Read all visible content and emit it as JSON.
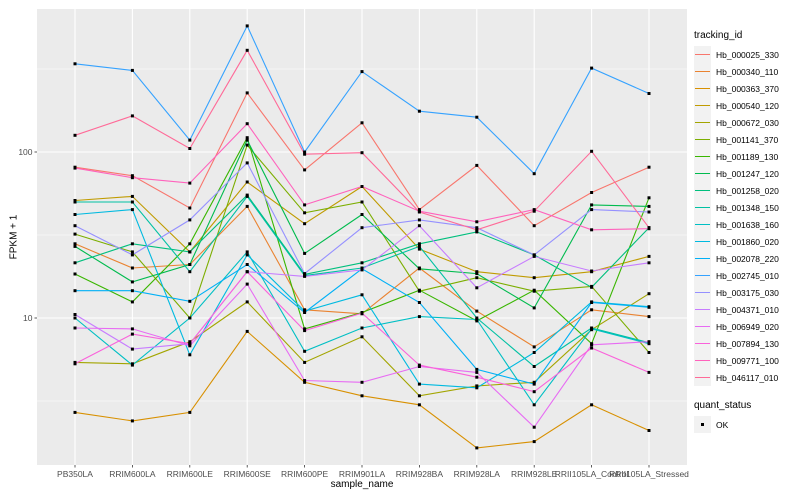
{
  "figure": {
    "background": "#FFFFFF",
    "panel_background": "#EBEBEB",
    "gridline_color": "#FFFFFF",
    "axis_text_color": "#4D4D4D",
    "tick_color": "#333333",
    "point_color": "#000000"
  },
  "legend": {
    "tracking_title": "tracking_id",
    "quant_title": "quant_status",
    "quant_value": "OK"
  },
  "chart_data": {
    "type": "line",
    "title": "",
    "xlabel": "sample_name",
    "ylabel": "FPKM + 1",
    "y_scale": "log10",
    "ylim": [
      1.3,
      750
    ],
    "y_ticks": [
      10,
      100
    ],
    "y_tick_labels": [
      "10",
      "100"
    ],
    "y_minor_ticks": [
      3.1623,
      31.623,
      316.23
    ],
    "grid": true,
    "legend_position": "right",
    "point_shape": "filled-square",
    "point_legend": {
      "title": "quant_status",
      "label": "OK"
    },
    "categories": [
      "PB350LA",
      "RRIM600LA",
      "RRIM600LE",
      "RRIM600SE",
      "RRIM600PE",
      "RRIM901LA",
      "RRIM928BA",
      "RRIM928LA",
      "RRIM928LE",
      "RRII105LA_Control",
      "RRII105LA_Stressed"
    ],
    "series": [
      {
        "name": "Hb_000025_330",
        "color": "#F8766D",
        "values": [
          81,
          72,
          46,
          227,
          78,
          150,
          45,
          83,
          36,
          57,
          81
        ]
      },
      {
        "name": "Hb_000340_110",
        "color": "#EA8331",
        "values": [
          28,
          20,
          21,
          47,
          11.2,
          10.6,
          20,
          11,
          6.7,
          11.2,
          10.2
        ]
      },
      {
        "name": "Hb_000363_370",
        "color": "#D89000",
        "values": [
          2.7,
          2.4,
          2.7,
          8.3,
          4.1,
          3.4,
          3.0,
          1.65,
          1.8,
          3.0,
          2.1
        ]
      },
      {
        "name": "Hb_000540_120",
        "color": "#C09B00",
        "values": [
          51,
          54,
          25,
          66,
          37,
          62,
          26,
          19,
          17.5,
          19,
          23.5
        ]
      },
      {
        "name": "Hb_000672_030",
        "color": "#A3A500",
        "values": [
          5.4,
          5.3,
          7.2,
          12.5,
          5.4,
          7.7,
          3.4,
          3.9,
          4.1,
          8.5,
          14
        ]
      },
      {
        "name": "Hb_001141_370",
        "color": "#7CAE00",
        "values": [
          32,
          25,
          10,
          110,
          43,
          50,
          14.5,
          17.5,
          14.5,
          15.5,
          6.2
        ]
      },
      {
        "name": "Hb_001189_130",
        "color": "#39B600",
        "values": [
          18.4,
          12.5,
          28,
          122,
          8.6,
          10.8,
          14.7,
          9.6,
          14.7,
          7.0,
          53
        ]
      },
      {
        "name": "Hb_001247_120",
        "color": "#00BB4E",
        "values": [
          27,
          16.5,
          21,
          118,
          24.5,
          42,
          19.8,
          18.5,
          11.5,
          48,
          47
        ]
      },
      {
        "name": "Hb_001258_020",
        "color": "#00BF7D",
        "values": [
          21.5,
          28,
          25,
          55,
          18.3,
          21.5,
          28,
          33,
          24,
          15.3,
          35
        ]
      },
      {
        "name": "Hb_001348_150",
        "color": "#00C1A3",
        "values": [
          50,
          50,
          19,
          54,
          18,
          20,
          27,
          10,
          5.1,
          8.7,
          7.1
        ]
      },
      {
        "name": "Hb_001638_160",
        "color": "#00BFC4",
        "values": [
          10,
          5.2,
          10,
          25,
          6.3,
          8.7,
          10.2,
          9.8,
          3.0,
          8.6,
          7.0
        ]
      },
      {
        "name": "Hb_001860_020",
        "color": "#00BAE0",
        "values": [
          42,
          45,
          6.0,
          24,
          11,
          13.8,
          4.0,
          3.8,
          6.2,
          12.5,
          11.7
        ]
      },
      {
        "name": "Hb_002078_220",
        "color": "#00B0F6",
        "values": [
          14.6,
          14.6,
          12.6,
          21,
          10.8,
          19.8,
          12.4,
          4.9,
          4.0,
          12.4,
          11.6
        ]
      },
      {
        "name": "Hb_002745_010",
        "color": "#35A2FF",
        "values": [
          340,
          310,
          118,
          575,
          100,
          305,
          176,
          162,
          74,
          320,
          225
        ]
      },
      {
        "name": "Hb_003175_030",
        "color": "#9590FF",
        "values": [
          36,
          24,
          39,
          86,
          18.5,
          35,
          39,
          35,
          24,
          45,
          43.5
        ]
      },
      {
        "name": "Hb_004371_010",
        "color": "#C77CFF",
        "values": [
          10.5,
          6.5,
          7.0,
          19,
          17.8,
          19.5,
          36,
          15.2,
          23.5,
          19.2,
          21.5
        ]
      },
      {
        "name": "Hb_006949_020",
        "color": "#E76BF3",
        "values": [
          8.7,
          8.6,
          6.8,
          16,
          4.2,
          4.1,
          5.1,
          4.7,
          2.2,
          6.9,
          7.2
        ]
      },
      {
        "name": "Hb_007894_130",
        "color": "#FA62DB",
        "values": [
          5.3,
          8.0,
          7.0,
          19,
          8.4,
          10.7,
          5.2,
          4.4,
          3.6,
          6.6,
          4.7
        ]
      },
      {
        "name": "Hb_009771_100",
        "color": "#FF62BC",
        "values": [
          80,
          70,
          65,
          148,
          48,
          62,
          44,
          38,
          45,
          34,
          34.5
        ]
      },
      {
        "name": "Hb_046117_010",
        "color": "#FF6A98",
        "values": [
          126,
          165,
          105,
          410,
          97,
          99,
          43.5,
          34,
          44,
          101,
          35
        ]
      }
    ]
  }
}
